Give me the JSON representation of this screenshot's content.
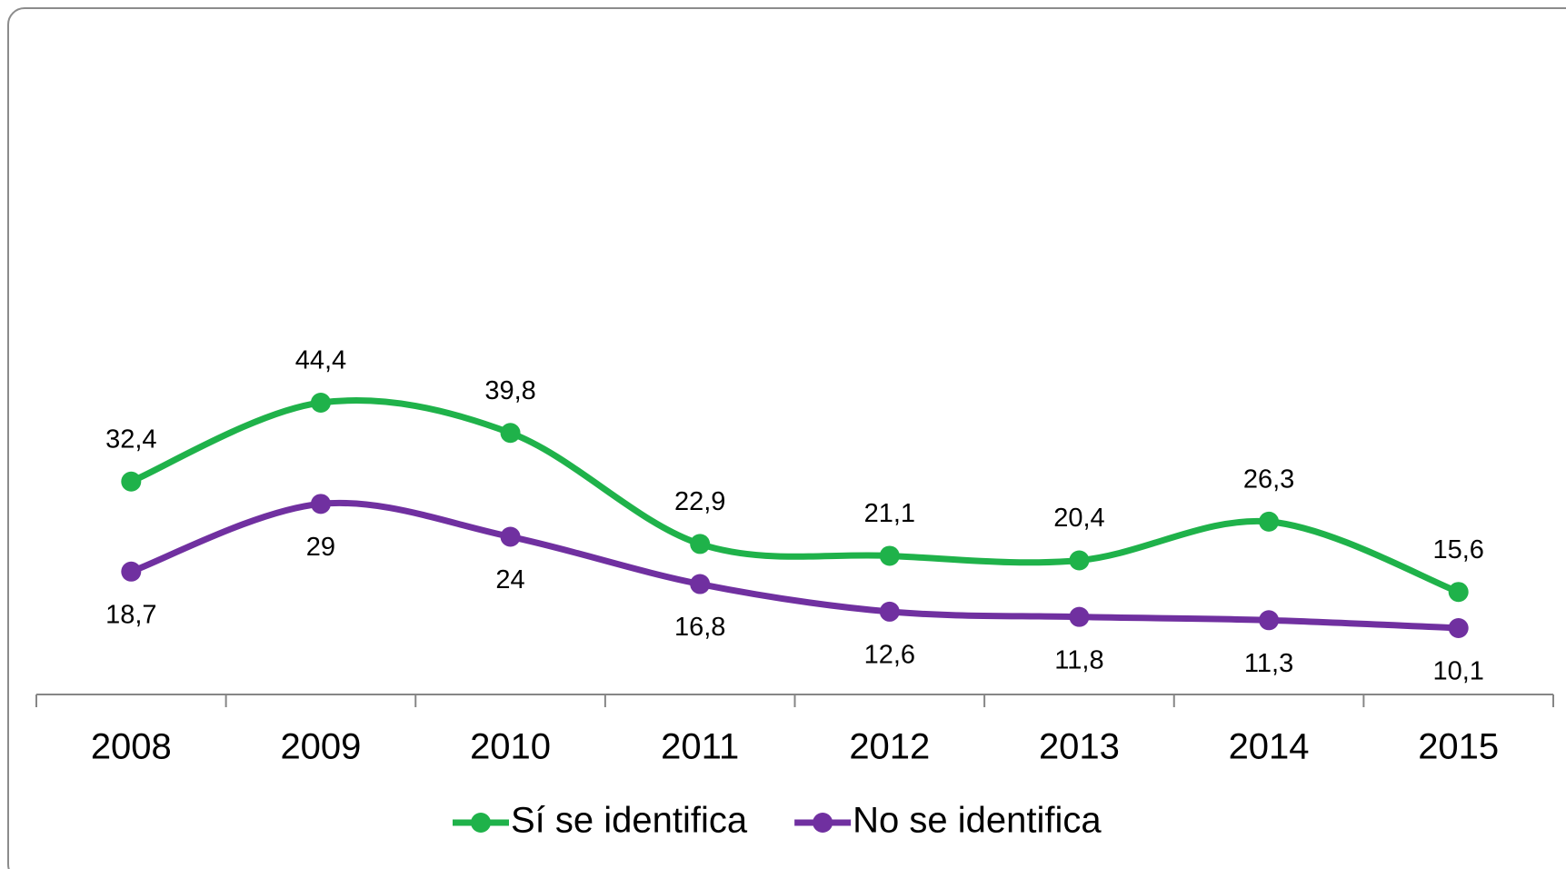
{
  "chart_data": {
    "type": "line",
    "categories": [
      "2008",
      "2009",
      "2010",
      "2011",
      "2012",
      "2013",
      "2014",
      "2015"
    ],
    "series": [
      {
        "name": "Sí se identifica",
        "color": "#1fb24a",
        "values": [
          32.4,
          44.4,
          39.8,
          22.9,
          21.1,
          20.4,
          26.3,
          15.6
        ],
        "value_labels": [
          "32,4",
          "44,4",
          "39,8",
          "22,9",
          "21,1",
          "20,4",
          "26,3",
          "15,6"
        ]
      },
      {
        "name": "No se identifica",
        "color": "#7030a0",
        "values": [
          18.7,
          29,
          24,
          16.8,
          12.6,
          11.8,
          11.3,
          10.1
        ],
        "value_labels": [
          "18,7",
          "29",
          "24",
          "16,8",
          "12,6",
          "11,8",
          "11,3",
          "10,1"
        ]
      }
    ],
    "ylim": [
      0,
      100
    ],
    "legend": "bottom"
  }
}
